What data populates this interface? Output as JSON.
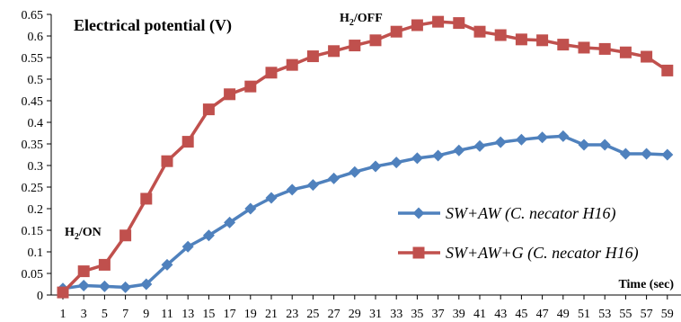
{
  "chart_data": {
    "type": "line",
    "title": "Electrical potential (V)",
    "xlabel": "Time (sec)",
    "ylabel": "",
    "ylim": [
      0,
      0.65
    ],
    "yticks": [
      "0",
      "0.05",
      "0.1",
      "0.15",
      "0.2",
      "0.25",
      "0.3",
      "0.35",
      "0.4",
      "0.45",
      "0.5",
      "0.55",
      "0.6",
      "0.65"
    ],
    "x": [
      1,
      3,
      5,
      7,
      9,
      11,
      13,
      15,
      17,
      19,
      21,
      23,
      25,
      27,
      29,
      31,
      33,
      35,
      37,
      39,
      41,
      43,
      45,
      47,
      49,
      51,
      53,
      55,
      57,
      59
    ],
    "series": [
      {
        "name": "SW+AW (C. necator H16)",
        "color": "#4F81BD",
        "marker": "diamond",
        "values": [
          0.015,
          0.022,
          0.02,
          0.018,
          0.025,
          0.07,
          0.112,
          0.138,
          0.168,
          0.2,
          0.225,
          0.244,
          0.255,
          0.27,
          0.285,
          0.298,
          0.307,
          0.317,
          0.323,
          0.335,
          0.345,
          0.354,
          0.36,
          0.365,
          0.368,
          0.348,
          0.348,
          0.327,
          0.327,
          0.325
        ]
      },
      {
        "name": "SW+AW+G (C. necator H16)",
        "color": "#C0504D",
        "marker": "square",
        "values": [
          0.006,
          0.055,
          0.07,
          0.138,
          0.223,
          0.31,
          0.355,
          0.43,
          0.465,
          0.483,
          0.515,
          0.533,
          0.553,
          0.565,
          0.578,
          0.59,
          0.61,
          0.625,
          0.633,
          0.63,
          0.61,
          0.602,
          0.592,
          0.59,
          0.58,
          0.573,
          0.57,
          0.562,
          0.552,
          0.52
        ]
      }
    ],
    "annotations": [
      {
        "text_pre": "H",
        "text_sub": "2",
        "text_post": "/ON",
        "x": 3,
        "y": 0.15
      },
      {
        "text_pre": "H",
        "text_sub": "2",
        "text_post": "/OFF",
        "x": 35,
        "y": 0.643
      }
    ],
    "legend": "inside-bottom-right",
    "grid": false
  }
}
